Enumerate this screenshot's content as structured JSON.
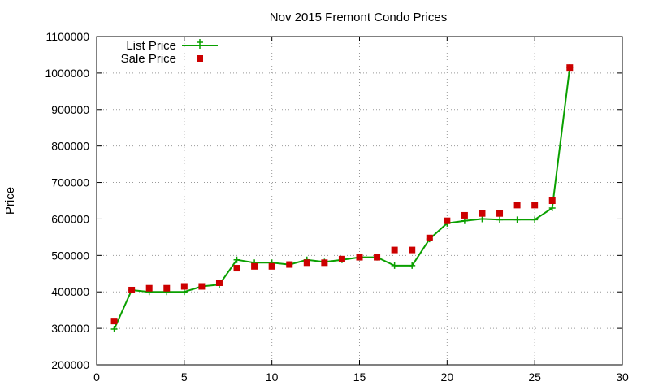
{
  "chart_data": {
    "type": "line",
    "title": "Nov 2015 Fremont Condo Prices",
    "xlabel": "",
    "ylabel": "Price",
    "xlim": [
      0,
      30
    ],
    "ylim": [
      200000,
      1100000
    ],
    "xticks": [
      0,
      5,
      10,
      15,
      20,
      25,
      30
    ],
    "yticks": [
      200000,
      300000,
      400000,
      500000,
      600000,
      700000,
      800000,
      900000,
      1000000,
      1100000
    ],
    "grid": true,
    "legend_position": "top-left",
    "series": [
      {
        "name": "List Price",
        "style": "line-with-plus-markers",
        "color": "#0aa000",
        "points": [
          [
            1,
            298000
          ],
          [
            2,
            405000
          ],
          [
            3,
            400000
          ],
          [
            4,
            400000
          ],
          [
            5,
            400000
          ],
          [
            6,
            415000
          ],
          [
            7,
            420000
          ],
          [
            8,
            488000
          ],
          [
            9,
            480000
          ],
          [
            10,
            480000
          ],
          [
            11,
            475000
          ],
          [
            12,
            488000
          ],
          [
            13,
            482000
          ],
          [
            14,
            488000
          ],
          [
            15,
            495000
          ],
          [
            16,
            495000
          ],
          [
            17,
            472000
          ],
          [
            18,
            472000
          ],
          [
            19,
            545000
          ],
          [
            20,
            588000
          ],
          [
            21,
            595000
          ],
          [
            22,
            600000
          ],
          [
            23,
            598000
          ],
          [
            24,
            598000
          ],
          [
            25,
            598000
          ],
          [
            26,
            630000
          ],
          [
            27,
            1015000
          ]
        ]
      },
      {
        "name": "Sale Price",
        "style": "square-markers",
        "color": "#cc0000",
        "points": [
          [
            1,
            320000
          ],
          [
            2,
            405000
          ],
          [
            3,
            410000
          ],
          [
            4,
            410000
          ],
          [
            5,
            415000
          ],
          [
            6,
            415000
          ],
          [
            7,
            425000
          ],
          [
            8,
            465000
          ],
          [
            9,
            470000
          ],
          [
            10,
            470000
          ],
          [
            11,
            475000
          ],
          [
            12,
            480000
          ],
          [
            13,
            480000
          ],
          [
            14,
            490000
          ],
          [
            15,
            495000
          ],
          [
            16,
            495000
          ],
          [
            17,
            515000
          ],
          [
            18,
            515000
          ],
          [
            19,
            548000
          ],
          [
            20,
            595000
          ],
          [
            21,
            610000
          ],
          [
            22,
            615000
          ],
          [
            23,
            615000
          ],
          [
            24,
            638000
          ],
          [
            25,
            638000
          ],
          [
            26,
            650000
          ],
          [
            27,
            1015000
          ]
        ]
      }
    ]
  }
}
